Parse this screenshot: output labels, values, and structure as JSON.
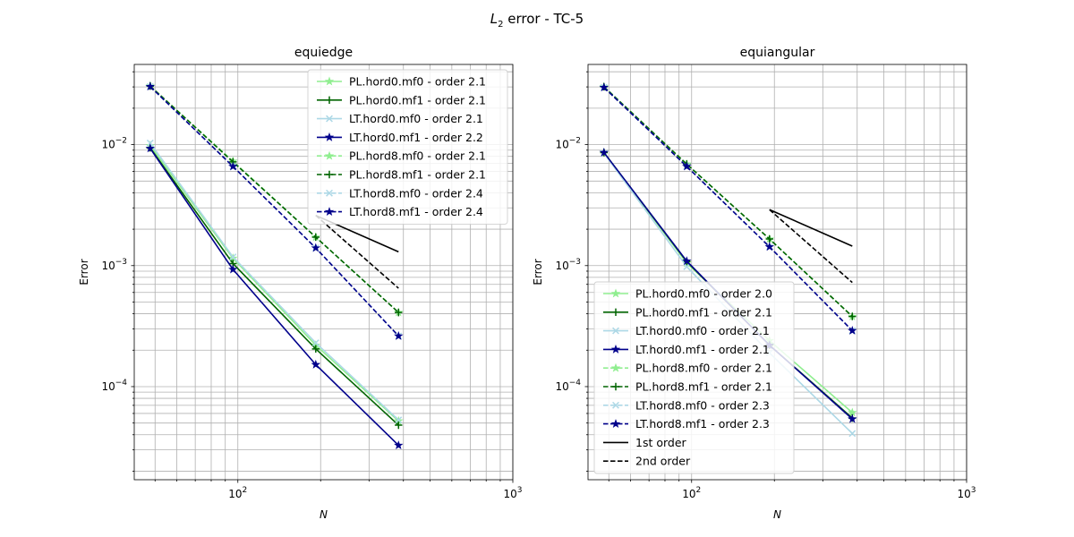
{
  "figure": {
    "suptitle_main": "L",
    "suptitle_sub": "2",
    "suptitle_rest": " error - TC-5"
  },
  "colors": {
    "PL.hord0.mf0": "#90ee90",
    "PL.hord0.mf1": "#006400",
    "LT.hord0.mf0": "#add8e6",
    "LT.hord0.mf1": "#00008b",
    "PL.hord8.mf0": "#90ee90",
    "PL.hord8.mf1": "#006400",
    "LT.hord8.mf0": "#add8e6",
    "LT.hord8.mf1": "#00008b",
    "1st order": "#000000",
    "2nd order": "#000000"
  },
  "chart_data": [
    {
      "type": "line",
      "title": "equiedge",
      "xlabel": "N",
      "ylabel": "Error",
      "xscale": "log",
      "yscale": "log",
      "xlim": [
        42,
        1000
      ],
      "ylim": [
        1.7e-05,
        0.046
      ],
      "xticks": [
        {
          "base": "10",
          "exp": "2",
          "value": 100
        },
        {
          "base": "10",
          "exp": "3",
          "value": 1000
        }
      ],
      "yticks": [
        {
          "base": "10",
          "exp": "−4",
          "value": 0.0001
        },
        {
          "base": "10",
          "exp": "−3",
          "value": 0.001
        },
        {
          "base": "10",
          "exp": "−2",
          "value": 0.01
        }
      ],
      "grid": true,
      "legend_position": "upper right",
      "x": [
        48,
        96,
        192,
        384
      ],
      "series": [
        {
          "name": "PL.hord0.mf0 - order 2.1",
          "key": "PL.hord0.mf0",
          "style": "solid",
          "marker": "star",
          "values": [
            0.0098,
            0.00115,
            0.00022,
            5.2e-05
          ]
        },
        {
          "name": "PL.hord0.mf1 - order 2.1",
          "key": "PL.hord0.mf1",
          "style": "solid",
          "marker": "plus",
          "values": [
            0.0094,
            0.00104,
            0.000205,
            4.8e-05
          ]
        },
        {
          "name": "LT.hord0.mf0 - order 2.1",
          "key": "LT.hord0.mf0",
          "style": "solid",
          "marker": "x",
          "values": [
            0.0103,
            0.00118,
            0.00023,
            5.3e-05
          ]
        },
        {
          "name": "LT.hord0.mf1 - order 2.2",
          "key": "LT.hord0.mf1",
          "style": "solid",
          "marker": "star",
          "values": [
            0.0093,
            0.00093,
            0.000152,
            3.27e-05
          ]
        },
        {
          "name": "PL.hord8.mf0 - order 2.1",
          "key": "PL.hord8.mf0",
          "style": "dashed",
          "marker": "star",
          "values": [
            0.0305,
            0.0073,
            0.00172,
            0.00041
          ]
        },
        {
          "name": "PL.hord8.mf1 - order 2.1",
          "key": "PL.hord8.mf1",
          "style": "dashed",
          "marker": "plus",
          "values": [
            0.0305,
            0.0072,
            0.00172,
            0.00041
          ]
        },
        {
          "name": "LT.hord8.mf0 - order 2.4",
          "key": "LT.hord8.mf0",
          "style": "dashed",
          "marker": "x",
          "values": [
            0.0302,
            0.0066,
            0.0014,
            0.000262
          ]
        },
        {
          "name": "LT.hord8.mf1 - order 2.4",
          "key": "LT.hord8.mf1",
          "style": "dashed",
          "marker": "star",
          "values": [
            0.0302,
            0.0066,
            0.0014,
            0.000262
          ]
        }
      ],
      "reference_lines": [
        {
          "key": "1st order",
          "style": "solid",
          "x": [
            192,
            384
          ],
          "values": [
            0.0026,
            0.0013
          ]
        },
        {
          "key": "2nd order",
          "style": "dashed",
          "x": [
            192,
            384
          ],
          "values": [
            0.0026,
            0.00065
          ]
        }
      ]
    },
    {
      "type": "line",
      "title": "equiangular",
      "xlabel": "N",
      "ylabel": "Error",
      "xscale": "log",
      "yscale": "log",
      "xlim": [
        42,
        1000
      ],
      "ylim": [
        1.7e-05,
        0.046
      ],
      "xticks": [
        {
          "base": "10",
          "exp": "2",
          "value": 100
        },
        {
          "base": "10",
          "exp": "3",
          "value": 1000
        }
      ],
      "yticks": [
        {
          "base": "10",
          "exp": "−4",
          "value": 0.0001
        },
        {
          "base": "10",
          "exp": "−3",
          "value": 0.001
        },
        {
          "base": "10",
          "exp": "−2",
          "value": 0.01
        }
      ],
      "grid": true,
      "legend_position": "lower left",
      "x": [
        48,
        96,
        192,
        384
      ],
      "series": [
        {
          "name": "PL.hord0.mf0 - order 2.0",
          "key": "PL.hord0.mf0",
          "style": "solid",
          "marker": "star",
          "values": [
            0.0086,
            0.00105,
            0.00024,
            6.1e-05
          ]
        },
        {
          "name": "PL.hord0.mf1 - order 2.1",
          "key": "PL.hord0.mf1",
          "style": "solid",
          "marker": "plus",
          "values": [
            0.0086,
            0.00108,
            0.00022,
            5.5e-05
          ]
        },
        {
          "name": "LT.hord0.mf0 - order 2.1",
          "key": "LT.hord0.mf0",
          "style": "solid",
          "marker": "x",
          "values": [
            0.0085,
            0.00098,
            0.00019,
            4.1e-05
          ]
        },
        {
          "name": "LT.hord0.mf1 - order 2.1",
          "key": "LT.hord0.mf1",
          "style": "solid",
          "marker": "star",
          "values": [
            0.0086,
            0.00109,
            0.00022,
            5.4e-05
          ]
        },
        {
          "name": "PL.hord8.mf0 - order 2.1",
          "key": "PL.hord8.mf0",
          "style": "dashed",
          "marker": "star",
          "values": [
            0.0301,
            0.0069,
            0.00166,
            0.00038
          ]
        },
        {
          "name": "PL.hord8.mf1 - order 2.1",
          "key": "PL.hord8.mf1",
          "style": "dashed",
          "marker": "plus",
          "values": [
            0.0301,
            0.0069,
            0.00166,
            0.00038
          ]
        },
        {
          "name": "LT.hord8.mf0 - order 2.3",
          "key": "LT.hord8.mf0",
          "style": "dashed",
          "marker": "x",
          "values": [
            0.0297,
            0.0066,
            0.00143,
            0.00029
          ]
        },
        {
          "name": "LT.hord8.mf1 - order 2.3",
          "key": "LT.hord8.mf1",
          "style": "dashed",
          "marker": "star",
          "values": [
            0.0297,
            0.0066,
            0.00143,
            0.00029
          ]
        }
      ],
      "reference_lines": [
        {
          "name": "1st order",
          "key": "1st order",
          "style": "solid",
          "x": [
            192,
            384
          ],
          "values": [
            0.0029,
            0.00145
          ]
        },
        {
          "name": "2nd order",
          "key": "2nd order",
          "style": "dashed",
          "x": [
            192,
            384
          ],
          "values": [
            0.0029,
            0.000725
          ]
        }
      ]
    }
  ]
}
